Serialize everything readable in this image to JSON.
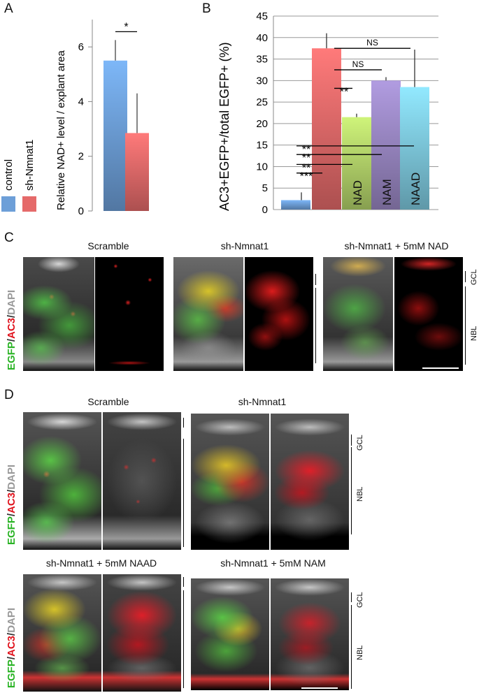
{
  "panel_letters": [
    "A",
    "B",
    "C",
    "D"
  ],
  "legend": {
    "items": [
      {
        "label": "control",
        "color": "#6d9fd8"
      },
      {
        "label": "sh-Nmnat1",
        "color": "#e56a6a"
      }
    ]
  },
  "chart_data": [
    {
      "type": "bar",
      "panel": "A",
      "categories": [
        "control",
        "sh-Nmnat1"
      ],
      "values": [
        5.5,
        2.85
      ],
      "errors": [
        0.75,
        1.45
      ],
      "ylabel": "Relative NAD+ level / explant area",
      "ylim": [
        0,
        7
      ],
      "yticks": [
        0,
        2,
        4,
        6
      ],
      "significance": [
        {
          "pair": [
            0,
            1
          ],
          "label": "*"
        }
      ],
      "colors": [
        "#6d9fd8",
        "#e56a6a"
      ]
    },
    {
      "type": "bar",
      "panel": "B",
      "categories": [
        "",
        "",
        "NAD",
        "NAM",
        "NAAD"
      ],
      "values": [
        2.2,
        37.5,
        21.5,
        30.0,
        28.5
      ],
      "errors": [
        1.8,
        3.5,
        0.8,
        0.8,
        8.7
      ],
      "ylabel": "AC3+EGFP+/total EGFP+ (%)",
      "ylim": [
        0,
        45
      ],
      "yticks": [
        0,
        5,
        10,
        15,
        20,
        25,
        30,
        35,
        40,
        45
      ],
      "grid": true,
      "colors": [
        "#6d9fd8",
        "#e56a6a",
        "#b4d46a",
        "#9a88c4",
        "#7fcbe0"
      ],
      "significance": [
        {
          "pair": [
            1,
            4
          ],
          "label": "NS"
        },
        {
          "pair": [
            1,
            3
          ],
          "label": "NS"
        },
        {
          "pair": [
            1,
            2
          ],
          "label": "**"
        },
        {
          "pair": [
            0,
            4
          ],
          "label": "**"
        },
        {
          "pair": [
            0,
            3
          ],
          "label": "**"
        },
        {
          "pair": [
            0,
            2
          ],
          "label": "**"
        },
        {
          "pair": [
            0,
            1
          ],
          "label": "***"
        }
      ]
    }
  ],
  "panel_c": {
    "titles": [
      "Scramble",
      "sh-Nmnat1",
      "sh-Nmnat1 + 5mM NAD"
    ],
    "stain_label": {
      "egfp": "EGFP",
      "sep1": "/",
      "ac3": "AC3",
      "sep2": "/",
      "dapi": "DAPI"
    },
    "layers": [
      "GCL",
      "NBL"
    ]
  },
  "panel_d": {
    "titles": [
      "Scramble",
      "sh-Nmnat1",
      "sh-Nmnat1 + 5mM NAAD",
      "sh-Nmnat1 + 5mM NAM"
    ],
    "stain_label": {
      "egfp": "EGFP",
      "sep1": "/",
      "ac3": "AC3",
      "sep2": "/",
      "dapi": "DAPI"
    },
    "layers": [
      "GCL",
      "NBL"
    ]
  }
}
